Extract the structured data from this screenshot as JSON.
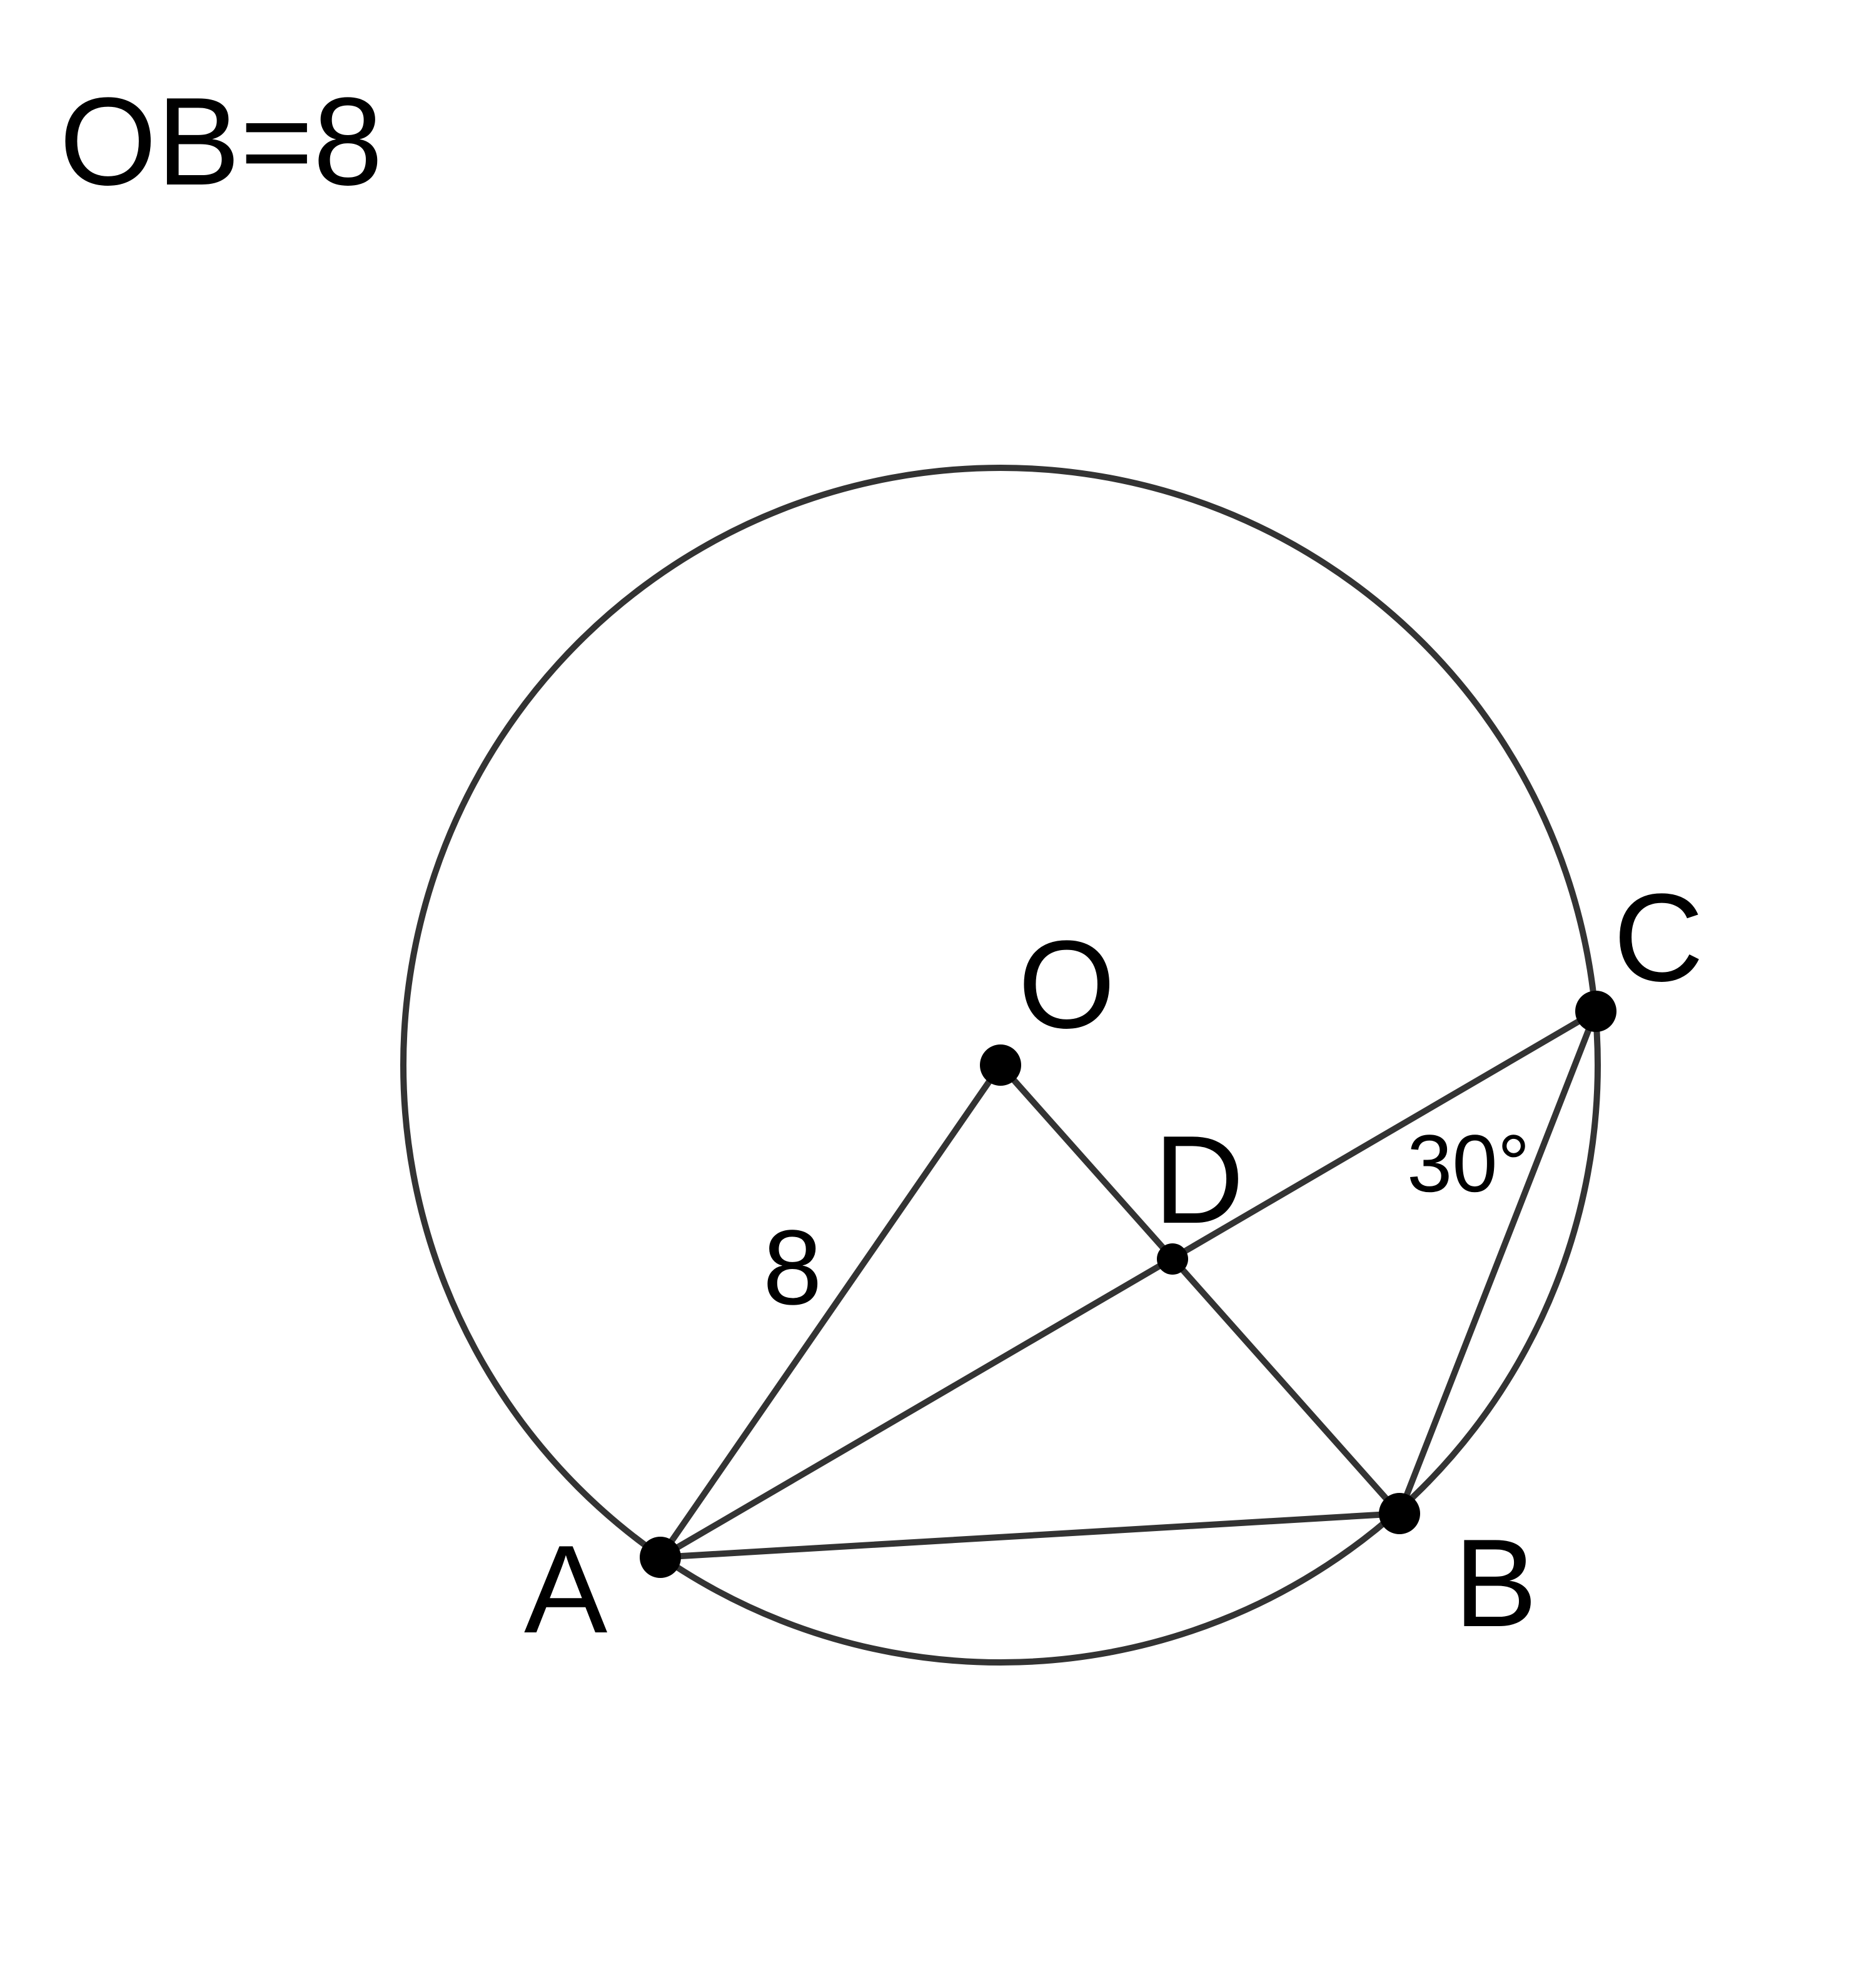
{
  "given_text": "OB=8",
  "points": {
    "O": "O",
    "A": "A",
    "B": "B",
    "C": "C",
    "D": "D"
  },
  "measurements": {
    "OA_length": "8",
    "angle_C": "30°"
  },
  "colors": {
    "stroke": "#333333",
    "point": "#000000",
    "text": "#000000",
    "background": "#ffffff"
  }
}
